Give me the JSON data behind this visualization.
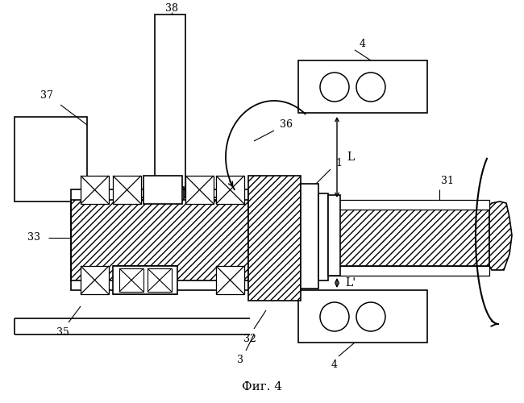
{
  "bg_color": "#ffffff",
  "fig_label": "Фиг. 4",
  "lw": 1.2
}
